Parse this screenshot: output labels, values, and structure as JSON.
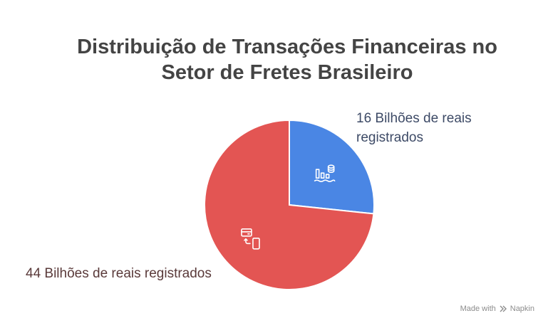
{
  "title_line1": "Distribuição de Transações Financeiras no",
  "title_line2": "Setor de Fretes Brasileiro",
  "footer": {
    "prefix": "Made with",
    "brand": "Napkin"
  },
  "colors": {
    "blue": "#4a86e4",
    "red": "#e35553",
    "icon": "#ffffff"
  },
  "chart_data": {
    "type": "pie",
    "title": "Distribuição de Transações Financeiras no Setor de Fretes Brasileiro",
    "slices": [
      {
        "label": "16 Bilhões de reais registrados",
        "value": 16,
        "color": "#4a86e4",
        "icon": "coins-chart-icon"
      },
      {
        "label": "44 Bilhões de reais registrados",
        "value": 44,
        "color": "#e35553",
        "icon": "card-to-phone-icon"
      }
    ],
    "start_angle_deg": 0,
    "direction": "clockwise"
  }
}
